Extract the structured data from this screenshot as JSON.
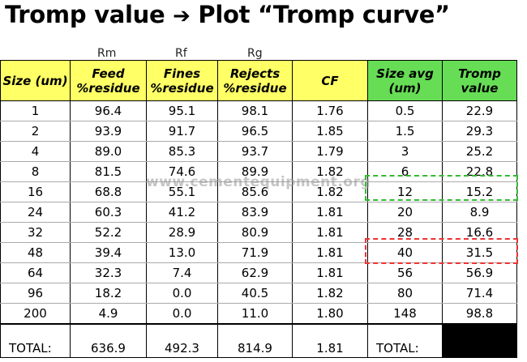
{
  "title": {
    "left": "Tromp value",
    "arrow": "➔",
    "right": "Plot “Tromp curve”"
  },
  "column_symbols": {
    "feed": "Rm",
    "fines": "Rf",
    "rejects": "Rg"
  },
  "headers": {
    "size": "Size (um)",
    "feed": "Feed %residue",
    "fines": "Fines %residue",
    "rejects": "Rejects %residue",
    "cf": "CF",
    "size_avg": "Size avg (um)",
    "tromp": "Tromp value"
  },
  "colors": {
    "header_yellow": "#ffff66",
    "header_green": "#66dd55",
    "highlight_green": "#33bb33",
    "highlight_red": "#ee3333"
  },
  "rows": [
    {
      "size": "1",
      "feed": "96.4",
      "fines": "95.1",
      "rejects": "98.1",
      "cf": "1.76",
      "size_avg": "0.5",
      "tromp": "22.9"
    },
    {
      "size": "2",
      "feed": "93.9",
      "fines": "91.7",
      "rejects": "96.5",
      "cf": "1.85",
      "size_avg": "1.5",
      "tromp": "29.3"
    },
    {
      "size": "4",
      "feed": "89.0",
      "fines": "85.3",
      "rejects": "93.7",
      "cf": "1.79",
      "size_avg": "3",
      "tromp": "25.2"
    },
    {
      "size": "8",
      "feed": "81.5",
      "fines": "74.6",
      "rejects": "89.9",
      "cf": "1.82",
      "size_avg": "6",
      "tromp": "22.8"
    },
    {
      "size": "16",
      "feed": "68.8",
      "fines": "55.1",
      "rejects": "85.6",
      "cf": "1.82",
      "size_avg": "12",
      "tromp": "15.2"
    },
    {
      "size": "24",
      "feed": "60.3",
      "fines": "41.2",
      "rejects": "83.9",
      "cf": "1.81",
      "size_avg": "20",
      "tromp": "8.9"
    },
    {
      "size": "32",
      "feed": "52.2",
      "fines": "28.9",
      "rejects": "80.9",
      "cf": "1.81",
      "size_avg": "28",
      "tromp": "16.6"
    },
    {
      "size": "48",
      "feed": "39.4",
      "fines": "13.0",
      "rejects": "71.9",
      "cf": "1.81",
      "size_avg": "40",
      "tromp": "31.5"
    },
    {
      "size": "64",
      "feed": "32.3",
      "fines": "7.4",
      "rejects": "62.9",
      "cf": "1.81",
      "size_avg": "56",
      "tromp": "56.9"
    },
    {
      "size": "96",
      "feed": "18.2",
      "fines": "0.0",
      "rejects": "40.5",
      "cf": "1.82",
      "size_avg": "80",
      "tromp": "71.4"
    },
    {
      "size": "200",
      "feed": "4.9",
      "fines": "0.0",
      "rejects": "11.0",
      "cf": "1.80",
      "size_avg": "148",
      "tromp": "98.8"
    }
  ],
  "totals": {
    "label": "TOTAL:",
    "feed": "636.9",
    "fines": "492.3",
    "rejects": "814.9",
    "cf": "1.81",
    "label2": "TOTAL:"
  },
  "watermark": "www.cementequipment.org"
}
